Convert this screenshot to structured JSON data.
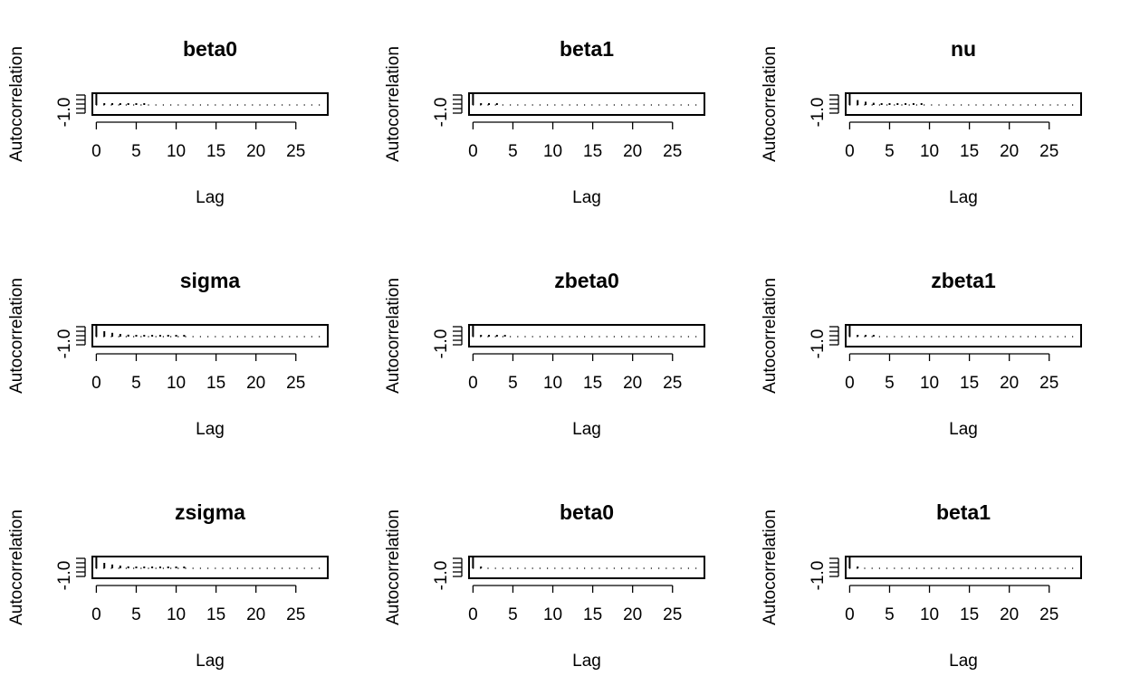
{
  "chart_data": [
    {
      "type": "bar",
      "title": "beta0",
      "xlabel": "Lag",
      "ylabel": "Autocorrelation",
      "xlim": [
        -0.5,
        29
      ],
      "ylim": [
        -1.0,
        1.0
      ],
      "x_ticks": [
        "0",
        "5",
        "10",
        "15",
        "20",
        "25"
      ],
      "y_ticks": [
        "-1.0"
      ],
      "lags": [
        0,
        1,
        2,
        3,
        4,
        5,
        6
      ],
      "values": [
        1.0,
        0.09,
        0.05,
        0.04,
        0.03,
        0.02,
        0.02
      ]
    },
    {
      "type": "bar",
      "title": "beta1",
      "xlabel": "Lag",
      "ylabel": "Autocorrelation",
      "xlim": [
        -0.5,
        29
      ],
      "ylim": [
        -1.0,
        1.0
      ],
      "x_ticks": [
        "0",
        "5",
        "10",
        "15",
        "20",
        "25"
      ],
      "y_ticks": [
        "-1.0"
      ],
      "lags": [
        0,
        1,
        2,
        3
      ],
      "values": [
        1.0,
        0.08,
        0.04,
        0.02
      ]
    },
    {
      "type": "bar",
      "title": "nu",
      "xlabel": "Lag",
      "ylabel": "Autocorrelation",
      "xlim": [
        -0.5,
        29
      ],
      "ylim": [
        -1.0,
        1.0
      ],
      "x_ticks": [
        "0",
        "5",
        "10",
        "15",
        "20",
        "25"
      ],
      "y_ticks": [
        "-1.0"
      ],
      "lags": [
        0,
        1,
        2,
        3,
        4,
        5,
        6,
        7,
        8,
        9
      ],
      "values": [
        1.0,
        0.45,
        0.3,
        0.2,
        0.14,
        0.1,
        0.07,
        0.05,
        0.04,
        0.03
      ]
    },
    {
      "type": "bar",
      "title": "sigma",
      "xlabel": "Lag",
      "ylabel": "Autocorrelation",
      "xlim": [
        -0.5,
        29
      ],
      "ylim": [
        -1.0,
        1.0
      ],
      "x_ticks": [
        "0",
        "5",
        "10",
        "15",
        "20",
        "25"
      ],
      "y_ticks": [
        "-1.0"
      ],
      "lags": [
        0,
        1,
        2,
        3,
        4,
        5,
        6,
        7,
        8,
        9,
        10,
        11
      ],
      "values": [
        1.0,
        0.5,
        0.35,
        0.25,
        0.18,
        0.13,
        0.1,
        0.08,
        0.06,
        0.05,
        0.04,
        0.03
      ]
    },
    {
      "type": "bar",
      "title": "zbeta0",
      "xlabel": "Lag",
      "ylabel": "Autocorrelation",
      "xlim": [
        -0.5,
        29
      ],
      "ylim": [
        -1.0,
        1.0
      ],
      "x_ticks": [
        "0",
        "5",
        "10",
        "15",
        "20",
        "25"
      ],
      "y_ticks": [
        "-1.0"
      ],
      "lags": [
        0,
        1,
        2,
        3,
        4
      ],
      "values": [
        1.0,
        0.09,
        0.05,
        0.03,
        0.02
      ]
    },
    {
      "type": "bar",
      "title": "zbeta1",
      "xlabel": "Lag",
      "ylabel": "Autocorrelation",
      "xlim": [
        -0.5,
        29
      ],
      "ylim": [
        -1.0,
        1.0
      ],
      "x_ticks": [
        "0",
        "5",
        "10",
        "15",
        "20",
        "25"
      ],
      "y_ticks": [
        "-1.0"
      ],
      "lags": [
        0,
        1,
        2,
        3
      ],
      "values": [
        1.0,
        0.08,
        0.04,
        0.02
      ]
    },
    {
      "type": "bar",
      "title": "zsigma",
      "xlabel": "Lag",
      "ylabel": "Autocorrelation",
      "xlim": [
        -0.5,
        29
      ],
      "ylim": [
        -1.0,
        1.0
      ],
      "x_ticks": [
        "0",
        "5",
        "10",
        "15",
        "20",
        "25"
      ],
      "y_ticks": [
        "-1.0"
      ],
      "lags": [
        0,
        1,
        2,
        3,
        4,
        5,
        6,
        7,
        8,
        9,
        10,
        11
      ],
      "values": [
        1.0,
        0.5,
        0.35,
        0.25,
        0.18,
        0.13,
        0.1,
        0.08,
        0.06,
        0.05,
        0.04,
        0.03
      ]
    },
    {
      "type": "bar",
      "title": "beta0",
      "xlabel": "Lag",
      "ylabel": "Autocorrelation",
      "xlim": [
        -0.5,
        29
      ],
      "ylim": [
        -1.0,
        1.0
      ],
      "x_ticks": [
        "0",
        "5",
        "10",
        "15",
        "20",
        "25"
      ],
      "y_ticks": [
        "-1.0"
      ],
      "lags": [
        0,
        1
      ],
      "values": [
        1.0,
        0.06
      ]
    },
    {
      "type": "bar",
      "title": "beta1",
      "xlabel": "Lag",
      "ylabel": "Autocorrelation",
      "xlim": [
        -0.5,
        29
      ],
      "ylim": [
        -1.0,
        1.0
      ],
      "x_ticks": [
        "0",
        "5",
        "10",
        "15",
        "20",
        "25"
      ],
      "y_ticks": [
        "-1.0"
      ],
      "lags": [
        0,
        1
      ],
      "values": [
        1.0,
        0.06
      ]
    }
  ]
}
